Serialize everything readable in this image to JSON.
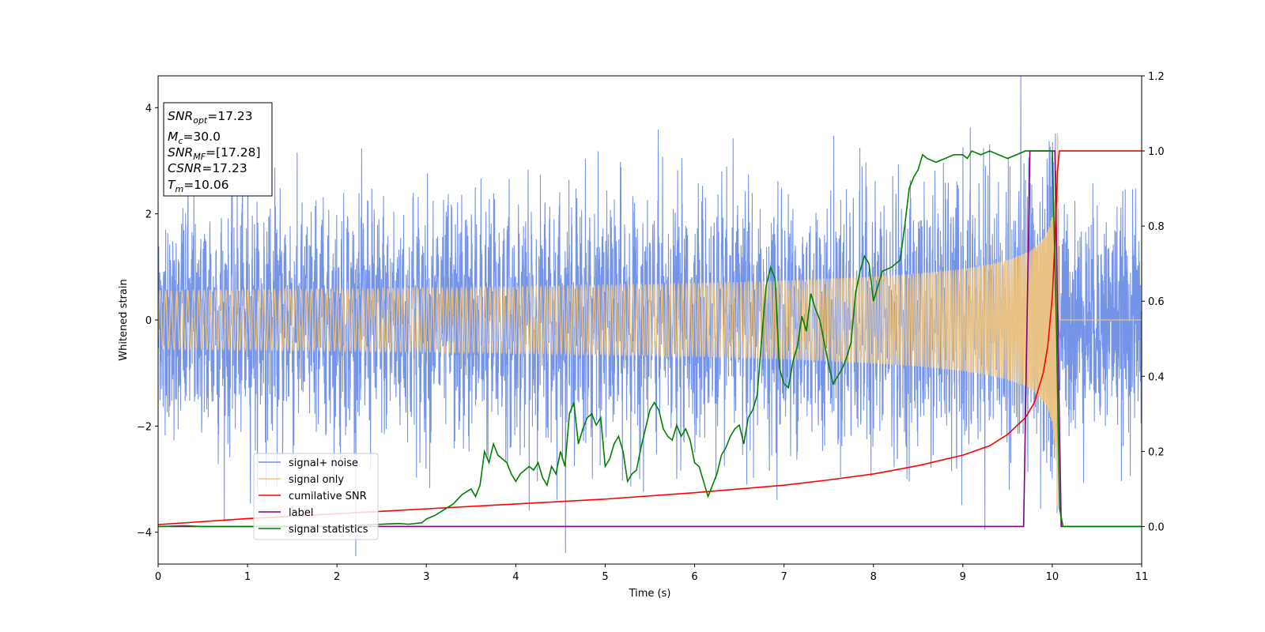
{
  "chart_data": {
    "type": "line",
    "xlabel": "Time (s)",
    "ylabel": "Whitened strain",
    "xlim": [
      0,
      11
    ],
    "ylim_left": [
      -4.6,
      4.6
    ],
    "ylim_right": [
      -0.1,
      1.2
    ],
    "x_ticks": [
      "0",
      "1",
      "2",
      "3",
      "4",
      "5",
      "6",
      "7",
      "8",
      "9",
      "10",
      "11"
    ],
    "y_ticks_left": [
      "4",
      "2",
      "0",
      "−2",
      "−4"
    ],
    "y_ticks_right": [
      "1.2",
      "1.0",
      "0.8",
      "0.6",
      "0.4",
      "0.2",
      "0.0"
    ],
    "y_tick_values_left": [
      4,
      2,
      0,
      -2,
      -4
    ],
    "y_tick_values_right": [
      1.2,
      1.0,
      0.8,
      0.6,
      0.4,
      0.2,
      0.0
    ],
    "annotation": {
      "snr_opt": {
        "base": "SNR",
        "sub": "opt",
        "value": "=17.23"
      },
      "mc": {
        "base": "M",
        "sub": "c",
        "value": "=30.0"
      },
      "snr_mf": {
        "base": "SNR",
        "sub": "MF",
        "value": "=[17.28]"
      },
      "csnr": {
        "base": "CSNR",
        "value": "=17.23"
      },
      "tm": {
        "base": "T",
        "sub": "m",
        "value": "=10.06"
      }
    },
    "legend_position": "lower-left",
    "series": [
      {
        "name": "signal+ noise",
        "axis": "left",
        "color": "#6f8ee6",
        "description": "white noise with std ~1.0, peaks near ±3.5, plus chirp signal",
        "noise_std": 1.0,
        "x_range": [
          0,
          11
        ]
      },
      {
        "name": "signal only",
        "axis": "left",
        "color": "#f5c77a",
        "description": "chirp merging at ~10.06 s",
        "merger_time": 10.06,
        "peak_amplitude": 3.9,
        "x_range": [
          0,
          11
        ]
      },
      {
        "name": "cumilative SNR",
        "axis": "right",
        "color": "#ff0000",
        "x": [
          0,
          1,
          2,
          3,
          4,
          5,
          6,
          7,
          7.5,
          8,
          8.5,
          9,
          9.3,
          9.5,
          9.7,
          9.8,
          9.9,
          9.95,
          10.0,
          10.03,
          10.06,
          10.08,
          11
        ],
        "y": [
          0.005,
          0.021,
          0.034,
          0.047,
          0.06,
          0.073,
          0.09,
          0.11,
          0.124,
          0.14,
          0.162,
          0.19,
          0.215,
          0.245,
          0.29,
          0.33,
          0.41,
          0.48,
          0.61,
          0.76,
          0.95,
          1.0,
          1.0
        ]
      },
      {
        "name": "label",
        "axis": "right",
        "color": "#800080",
        "x": [
          0,
          9.68,
          9.75,
          10.03,
          10.1,
          11
        ],
        "y": [
          0.0,
          0.0,
          1.0,
          1.0,
          0.0,
          0.0
        ]
      },
      {
        "name": "signal statistics",
        "axis": "right",
        "color": "#008000",
        "x": [
          0,
          0.3,
          0.5,
          1.0,
          1.5,
          2.0,
          2.3,
          2.5,
          2.7,
          2.8,
          2.95,
          3.0,
          3.1,
          3.3,
          3.4,
          3.5,
          3.55,
          3.6,
          3.65,
          3.7,
          3.75,
          3.8,
          3.85,
          3.9,
          3.95,
          4.0,
          4.05,
          4.1,
          4.15,
          4.2,
          4.25,
          4.3,
          4.35,
          4.4,
          4.45,
          4.5,
          4.55,
          4.6,
          4.65,
          4.7,
          4.75,
          4.8,
          4.85,
          4.9,
          4.95,
          5.0,
          5.05,
          5.1,
          5.15,
          5.2,
          5.25,
          5.3,
          5.35,
          5.4,
          5.45,
          5.5,
          5.55,
          5.6,
          5.65,
          5.7,
          5.75,
          5.8,
          5.85,
          5.9,
          5.95,
          6.0,
          6.05,
          6.1,
          6.15,
          6.2,
          6.25,
          6.3,
          6.35,
          6.4,
          6.45,
          6.5,
          6.55,
          6.6,
          6.65,
          6.7,
          6.75,
          6.8,
          6.85,
          6.9,
          6.95,
          7.0,
          7.05,
          7.1,
          7.15,
          7.2,
          7.25,
          7.3,
          7.35,
          7.4,
          7.45,
          7.5,
          7.55,
          7.6,
          7.65,
          7.7,
          7.75,
          7.8,
          7.85,
          7.9,
          7.95,
          8.0,
          8.1,
          8.2,
          8.3,
          8.35,
          8.4,
          8.45,
          8.5,
          8.55,
          8.6,
          8.7,
          8.8,
          8.9,
          9.0,
          9.05,
          9.1,
          9.2,
          9.3,
          9.4,
          9.5,
          9.6,
          9.7,
          9.8,
          9.9,
          10.0,
          10.05,
          10.08,
          10.12,
          10.2,
          11
        ],
        "y": [
          0.0,
          0.002,
          0.0,
          0.0,
          0.0,
          0.0,
          0.004,
          0.006,
          0.008,
          0.006,
          0.01,
          0.02,
          0.03,
          0.06,
          0.085,
          0.1,
          0.08,
          0.11,
          0.2,
          0.17,
          0.22,
          0.19,
          0.18,
          0.17,
          0.14,
          0.12,
          0.14,
          0.15,
          0.16,
          0.15,
          0.17,
          0.13,
          0.11,
          0.16,
          0.14,
          0.2,
          0.16,
          0.3,
          0.33,
          0.22,
          0.26,
          0.29,
          0.3,
          0.27,
          0.29,
          0.16,
          0.18,
          0.22,
          0.24,
          0.2,
          0.12,
          0.14,
          0.15,
          0.21,
          0.26,
          0.31,
          0.33,
          0.31,
          0.26,
          0.24,
          0.23,
          0.27,
          0.24,
          0.26,
          0.23,
          0.17,
          0.16,
          0.12,
          0.08,
          0.11,
          0.14,
          0.19,
          0.21,
          0.24,
          0.26,
          0.27,
          0.22,
          0.29,
          0.31,
          0.35,
          0.5,
          0.64,
          0.69,
          0.66,
          0.42,
          0.38,
          0.37,
          0.44,
          0.48,
          0.56,
          0.52,
          0.62,
          0.58,
          0.55,
          0.49,
          0.43,
          0.38,
          0.4,
          0.42,
          0.45,
          0.49,
          0.62,
          0.68,
          0.72,
          0.7,
          0.6,
          0.68,
          0.69,
          0.71,
          0.8,
          0.9,
          0.93,
          0.95,
          0.99,
          0.98,
          0.97,
          0.98,
          0.99,
          0.99,
          0.98,
          1.0,
          0.99,
          1.0,
          0.99,
          0.98,
          0.99,
          1.0,
          1.0,
          1.0,
          1.0,
          0.5,
          0.05,
          0.0,
          0.0,
          0.0
        ]
      }
    ]
  }
}
